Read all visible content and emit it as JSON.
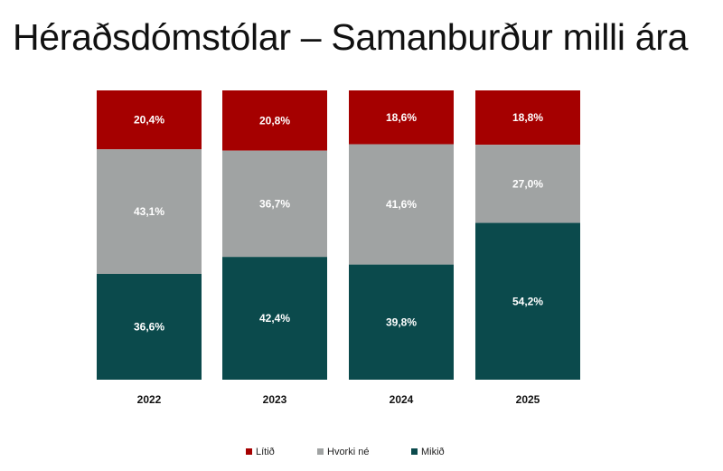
{
  "title": "Héraðsdómstólar  – Samanburður milli ára",
  "colors": {
    "litid": "#a50000",
    "hvorki": "#a0a3a3",
    "mikid": "#0b4a4c"
  },
  "chart_data": {
    "type": "bar",
    "stacked": true,
    "categories": [
      "2022",
      "2023",
      "2024",
      "2025"
    ],
    "series": [
      {
        "name": "Lítið",
        "values": [
          20.4,
          20.8,
          18.6,
          18.8
        ],
        "labels": [
          "20,4%",
          "20,8%",
          "18,6%",
          "18,8%"
        ]
      },
      {
        "name": "Hvorki né",
        "values": [
          43.1,
          36.7,
          41.6,
          27.0
        ],
        "labels": [
          "43,1%",
          "36,7%",
          "41,6%",
          "27,0%"
        ]
      },
      {
        "name": "Mikið",
        "values": [
          36.6,
          42.4,
          39.8,
          54.2
        ],
        "labels": [
          "36,6%",
          "42,4%",
          "39,8%",
          "54,2%"
        ]
      }
    ],
    "ylim": [
      0,
      100
    ],
    "grid": false,
    "legend_position": "bottom"
  }
}
